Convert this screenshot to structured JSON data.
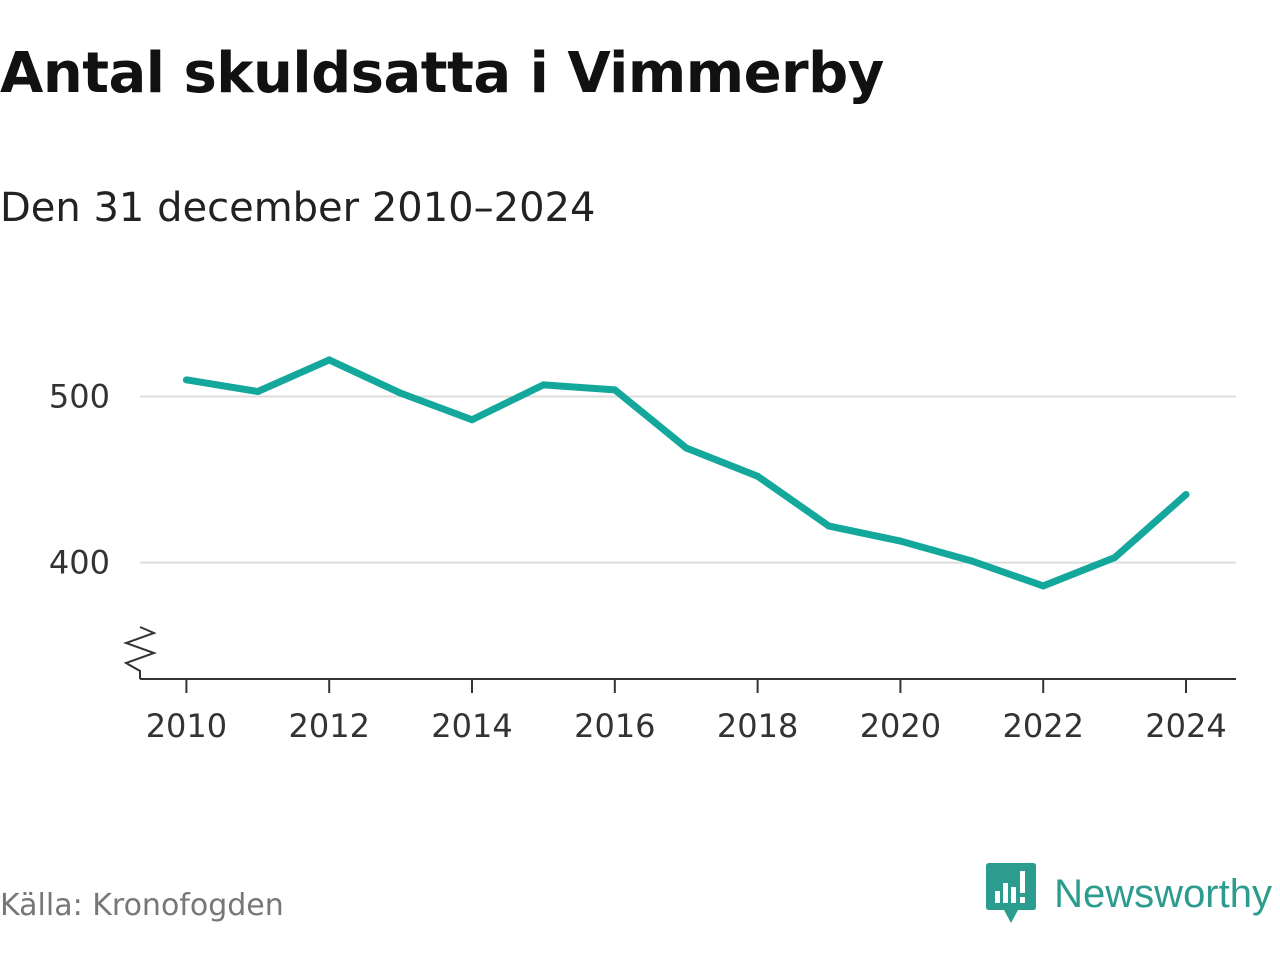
{
  "header": {
    "title": "Antal skuldsatta i Vimmerby",
    "subtitle": "Den 31 december 2010–2024"
  },
  "footer": {
    "source": "Källa: Kronofogden",
    "brand": "Newsworthy",
    "brand_icon": "newsworthy-logo-icon"
  },
  "colors": {
    "line": "#13a89b",
    "grid": "#dddddd",
    "axis": "#333333",
    "brand": "#2c9c8e"
  },
  "chart_data": {
    "type": "line",
    "title": "Antal skuldsatta i Vimmerby",
    "subtitle": "Den 31 december 2010–2024",
    "xlabel": "",
    "ylabel": "",
    "x": [
      2010,
      2011,
      2012,
      2013,
      2014,
      2015,
      2016,
      2017,
      2018,
      2019,
      2020,
      2021,
      2022,
      2023,
      2024
    ],
    "series": [
      {
        "values": [
          510,
          503,
          522,
          502,
          486,
          507,
          504,
          469,
          452,
          422,
          413,
          401,
          386,
          403,
          441
        ]
      }
    ],
    "xticks": [
      "2010",
      "2012",
      "2014",
      "2016",
      "2018",
      "2020",
      "2022",
      "2024"
    ],
    "yticks": [
      "400",
      "500"
    ],
    "ylim": [
      330,
      540
    ],
    "xlim": [
      2009.35,
      2024.7
    ],
    "y_axis_break": true,
    "grid": "horizontal",
    "legend": "none"
  }
}
